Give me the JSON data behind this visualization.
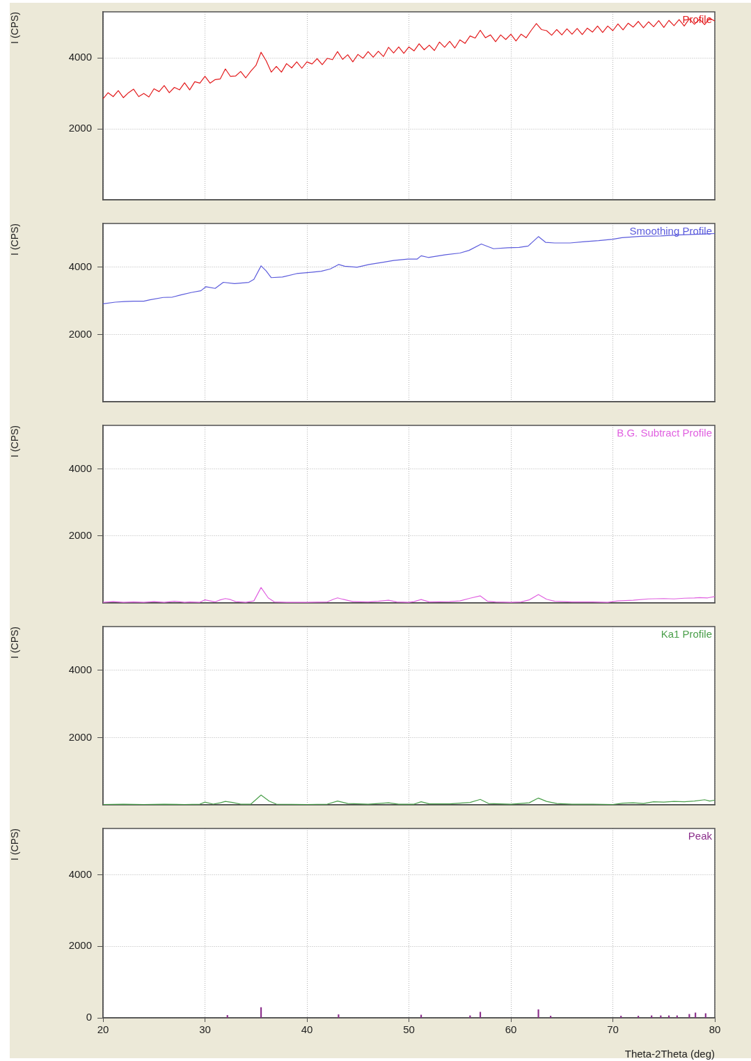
{
  "chart_data": [
    {
      "type": "line",
      "ylabel": "I (CPS)",
      "x": [
        20,
        20.5,
        21,
        21.5,
        22,
        22.5,
        23,
        23.5,
        24,
        24.5,
        25,
        25.5,
        26,
        26.5,
        27,
        27.5,
        28,
        28.5,
        29,
        29.5,
        30,
        30.5,
        31,
        31.5,
        32,
        32.5,
        33,
        33.5,
        34,
        34.5,
        35,
        35.5,
        36,
        36.5,
        37,
        37.5,
        38,
        38.5,
        39,
        39.5,
        40,
        40.5,
        41,
        41.5,
        42,
        42.5,
        43,
        43.5,
        44,
        44.5,
        45,
        45.5,
        46,
        46.5,
        47,
        47.5,
        48,
        48.5,
        49,
        49.5,
        50,
        50.5,
        51,
        51.5,
        52,
        52.5,
        53,
        53.5,
        54,
        54.5,
        55,
        55.5,
        56,
        56.5,
        57,
        57.5,
        58,
        58.5,
        59,
        59.5,
        60,
        60.5,
        61,
        61.5,
        62,
        62.5,
        63,
        63.5,
        64,
        64.5,
        65,
        65.5,
        66,
        66.5,
        67,
        67.5,
        68,
        68.5,
        69,
        69.5,
        70,
        70.5,
        71,
        71.5,
        72,
        72.5,
        73,
        73.5,
        74,
        74.5,
        75,
        75.5,
        76,
        76.5,
        77,
        77.5,
        78,
        78.5,
        79,
        79.5,
        80
      ],
      "series": [
        {
          "name": "Profile",
          "color": "#e31a1c",
          "values": [
            2850,
            3020,
            2910,
            3080,
            2880,
            3020,
            3120,
            2910,
            3000,
            2900,
            3130,
            3050,
            3220,
            3020,
            3170,
            3100,
            3300,
            3100,
            3330,
            3290,
            3480,
            3290,
            3390,
            3410,
            3690,
            3480,
            3490,
            3620,
            3440,
            3630,
            3790,
            4160,
            3920,
            3600,
            3760,
            3600,
            3840,
            3720,
            3890,
            3710,
            3890,
            3830,
            3980,
            3810,
            3990,
            3950,
            4180,
            3960,
            4090,
            3890,
            4100,
            3990,
            4180,
            4020,
            4190,
            4040,
            4300,
            4140,
            4310,
            4130,
            4310,
            4200,
            4400,
            4230,
            4360,
            4210,
            4450,
            4300,
            4470,
            4280,
            4510,
            4410,
            4620,
            4560,
            4780,
            4570,
            4650,
            4460,
            4650,
            4520,
            4670,
            4480,
            4670,
            4570,
            4780,
            4970,
            4800,
            4770,
            4640,
            4800,
            4650,
            4820,
            4670,
            4830,
            4660,
            4840,
            4730,
            4900,
            4720,
            4900,
            4770,
            4960,
            4790,
            4980,
            4870,
            5030,
            4850,
            5020,
            4880,
            5050,
            4860,
            5060,
            4910,
            5080,
            4900,
            5100,
            4950,
            5090,
            4940,
            5120,
            5040
          ]
        }
      ],
      "xlim": [
        20,
        80
      ],
      "ylim": [
        0,
        5300
      ],
      "xticks": [
        20,
        30,
        40,
        50,
        60,
        70,
        80
      ],
      "yticks": [
        2000,
        4000
      ],
      "grid": true,
      "tick_labels": "y"
    },
    {
      "type": "line",
      "ylabel": "I (CPS)",
      "x": [
        20,
        21.2,
        22.1,
        23,
        24,
        24.6,
        25.9,
        26.8,
        27.7,
        28.7,
        29.6,
        30.1,
        31,
        31.8,
        32.9,
        34.3,
        34.8,
        35.5,
        36,
        36.5,
        37.6,
        39,
        40.4,
        41.4,
        42.3,
        43.1,
        43.7,
        44.9,
        46.1,
        47.5,
        48.5,
        49.9,
        50.8,
        51.2,
        51.9,
        53.6,
        55,
        55.9,
        57.1,
        58.3,
        59.7,
        60.8,
        61.7,
        62.7,
        63.4,
        64.3,
        65.8,
        67.2,
        68.6,
        70,
        70.9,
        72.8,
        74.7,
        76.6,
        78.5,
        80
      ],
      "series": [
        {
          "name": "Smoothing Profile",
          "color": "#5b5bdc",
          "values": [
            2910,
            2960,
            2980,
            2990,
            2990,
            3030,
            3100,
            3110,
            3180,
            3250,
            3300,
            3420,
            3370,
            3550,
            3510,
            3550,
            3640,
            4040,
            3890,
            3690,
            3710,
            3810,
            3850,
            3880,
            3950,
            4080,
            4030,
            4000,
            4080,
            4150,
            4200,
            4240,
            4240,
            4340,
            4290,
            4370,
            4420,
            4500,
            4690,
            4550,
            4580,
            4590,
            4630,
            4910,
            4740,
            4720,
            4720,
            4760,
            4790,
            4830,
            4880,
            4920,
            4930,
            4960,
            4980,
            5000
          ]
        }
      ],
      "xlim": [
        20,
        80
      ],
      "ylim": [
        0,
        5300
      ],
      "xticks": [
        20,
        30,
        40,
        50,
        60,
        70,
        80
      ],
      "yticks": [
        2000,
        4000
      ],
      "grid": true,
      "tick_labels": "y"
    },
    {
      "type": "line",
      "ylabel": "I (CPS)",
      "x": [
        20,
        21,
        22,
        23,
        24,
        25,
        26,
        27,
        28,
        28.5,
        29.5,
        30,
        30.5,
        31,
        31.5,
        32,
        32.5,
        33,
        34,
        34.8,
        35.5,
        36.2,
        36.8,
        38,
        40,
        42,
        42.6,
        43,
        43.5,
        44.5,
        46,
        47,
        48,
        48.8,
        50,
        50.5,
        51.2,
        52,
        54,
        55,
        56,
        57,
        57.7,
        58.5,
        60,
        61,
        61.8,
        62.7,
        63.5,
        64.3,
        66,
        68,
        69.5,
        70.5,
        72,
        73.5,
        75,
        76,
        77,
        78,
        78.5,
        79.3,
        80
      ],
      "series": [
        {
          "name": "B.G. Subtract Profile",
          "color": "#e060e0",
          "values": [
            20,
            40,
            20,
            30,
            20,
            40,
            20,
            50,
            20,
            30,
            20,
            90,
            60,
            30,
            90,
            130,
            100,
            40,
            20,
            60,
            460,
            150,
            30,
            20,
            20,
            30,
            110,
            150,
            110,
            40,
            30,
            50,
            80,
            30,
            20,
            40,
            100,
            30,
            40,
            60,
            140,
            210,
            50,
            30,
            20,
            30,
            90,
            250,
            110,
            50,
            30,
            30,
            20,
            60,
            80,
            120,
            130,
            120,
            140,
            150,
            160,
            150,
            190
          ]
        }
      ],
      "xlim": [
        20,
        80
      ],
      "ylim": [
        0,
        5300
      ],
      "xticks": [
        20,
        30,
        40,
        50,
        60,
        70,
        80
      ],
      "yticks": [
        2000,
        4000
      ],
      "grid": true,
      "tick_labels": "y"
    },
    {
      "type": "line",
      "ylabel": "I (CPS)",
      "x": [
        20,
        22,
        24,
        26,
        28,
        29.5,
        30,
        30.8,
        31.5,
        32,
        32.7,
        33.5,
        34.5,
        35.5,
        36.3,
        37,
        40,
        42,
        43,
        44,
        46,
        48,
        49,
        50.5,
        51.2,
        52,
        54,
        56,
        57,
        57.8,
        60,
        61.8,
        62.7,
        63.5,
        64.5,
        66,
        68,
        70,
        71,
        72,
        73,
        74,
        75,
        76,
        77,
        78,
        79,
        79.5,
        80
      ],
      "series": [
        {
          "name": "Ka1 Profile",
          "color": "#4a9f4a",
          "values": [
            10,
            20,
            10,
            20,
            10,
            20,
            80,
            20,
            60,
            100,
            70,
            20,
            20,
            290,
            110,
            20,
            10,
            20,
            110,
            40,
            20,
            60,
            20,
            20,
            90,
            30,
            30,
            70,
            160,
            40,
            20,
            60,
            200,
            100,
            40,
            20,
            20,
            10,
            50,
            60,
            40,
            90,
            80,
            100,
            90,
            110,
            150,
            110,
            140
          ]
        }
      ],
      "xlim": [
        20,
        80
      ],
      "ylim": [
        0,
        5300
      ],
      "xticks": [
        20,
        30,
        40,
        50,
        60,
        70,
        80
      ],
      "yticks": [
        2000,
        4000
      ],
      "grid": true,
      "tick_labels": "y"
    },
    {
      "type": "bar",
      "xlabel": "Theta-2Theta (deg)",
      "ylabel": "I (CPS)",
      "x": [
        32.2,
        35.5,
        43.1,
        51.2,
        56,
        57,
        62.7,
        63.9,
        70.8,
        72.5,
        73.8,
        74.7,
        75.5,
        76.3,
        77.5,
        78.1,
        79.1
      ],
      "series": [
        {
          "name": "Peak",
          "color": "#8b2f8b",
          "values": [
            70,
            290,
            90,
            80,
            60,
            160,
            230,
            50,
            50,
            50,
            60,
            60,
            60,
            60,
            100,
            140,
            120
          ]
        }
      ],
      "xlim": [
        20,
        80
      ],
      "ylim": [
        0,
        5300
      ],
      "xticks": [
        20,
        30,
        40,
        50,
        60,
        70,
        80
      ],
      "yticks": [
        0,
        2000,
        4000
      ],
      "grid": true
    }
  ]
}
